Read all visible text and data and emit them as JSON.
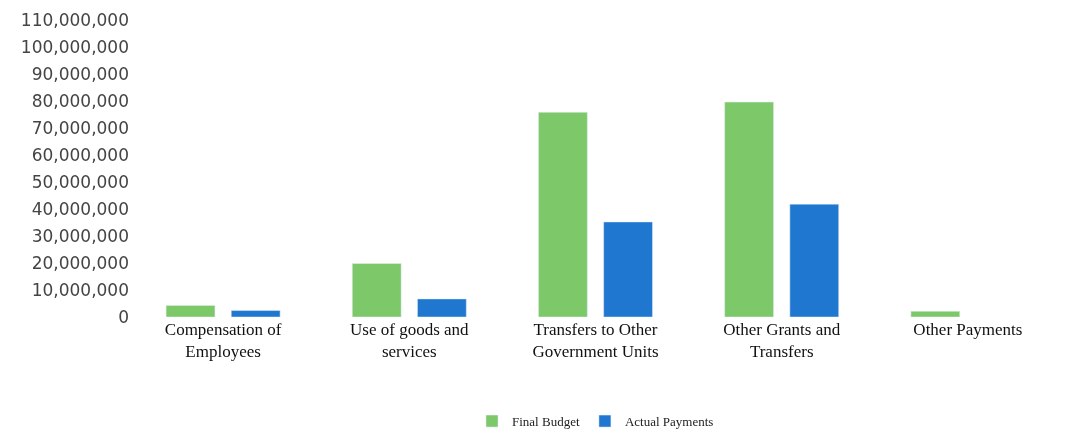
{
  "chart_data": {
    "type": "bar",
    "categories": [
      "Compensation of Employees",
      "Use of goods and services",
      "Transfers to Other Government Units",
      "Other Grants and Transfers",
      "Other Payments"
    ],
    "series": [
      {
        "name": "Final Budget",
        "color": "#7dc96a",
        "values": [
          4300000,
          19800000,
          75800000,
          79600000,
          2100000
        ]
      },
      {
        "name": "Actual Payments",
        "color": "#1f77d0",
        "values": [
          2400000,
          6700000,
          35200000,
          41800000,
          null
        ]
      }
    ],
    "ylim": [
      0,
      110000000
    ],
    "yticks": [
      {
        "value": 0,
        "label": "0"
      },
      {
        "value": 10000000,
        "label": "10,000,000"
      },
      {
        "value": 20000000,
        "label": "20,000,000"
      },
      {
        "value": 30000000,
        "label": "30,000,000"
      },
      {
        "value": 40000000,
        "label": "40,000,000"
      },
      {
        "value": 50000000,
        "label": "50,000,000"
      },
      {
        "value": 60000000,
        "label": "60,000,000"
      },
      {
        "value": 70000000,
        "label": "70,000,000"
      },
      {
        "value": 80000000,
        "label": "80,000,000"
      },
      {
        "value": 90000000,
        "label": "90,000,000"
      },
      {
        "value": 100000000,
        "label": "100,000,000"
      },
      {
        "value": 110000000,
        "label": "110,000,000"
      }
    ],
    "legend": "bottom"
  }
}
